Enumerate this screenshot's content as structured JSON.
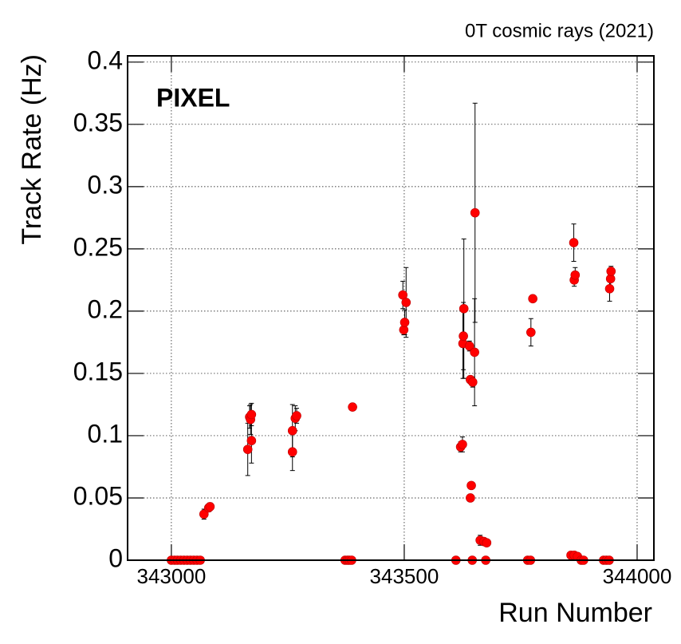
{
  "chart_data": {
    "type": "scatter",
    "title": "0T cosmic rays (2021)",
    "annotation": "PIXEL",
    "x_label": "Run Number",
    "y_label": "Track Rate (Hz)",
    "color": "#ff0000",
    "grid": true,
    "xlim": [
      342906,
      344036
    ],
    "ylim": [
      0,
      0.405
    ],
    "xticks": [
      343000,
      343500,
      344000
    ],
    "yticks": [
      0,
      0.05,
      0.1,
      0.15,
      0.2,
      0.25,
      0.3,
      0.35,
      0.4
    ],
    "x": [
      343000,
      343007,
      343013,
      343020,
      343027,
      343034,
      343041,
      343048,
      343055,
      343062,
      343070,
      343080,
      343083,
      343164,
      343168,
      343170,
      343172,
      343172,
      343260,
      343260,
      343266,
      343269,
      343373,
      343378,
      343382,
      343387,
      343389,
      343497,
      343499,
      343501,
      343504,
      343611,
      343621,
      343625,
      343626,
      343627,
      343628,
      343640,
      343642,
      343644,
      343642,
      343646,
      343647,
      343651,
      343652,
      343663,
      343671,
      343677,
      343675,
      343765,
      343771,
      343772,
      343776,
      343858,
      343865,
      343864,
      343865,
      343867,
      343872,
      343880,
      343885,
      343928,
      343934,
      343940,
      343941,
      343943,
      343944
    ],
    "values": [
      0,
      0,
      0,
      0,
      0,
      0,
      0,
      0,
      0,
      0,
      0.037,
      0.042,
      0.043,
      0.089,
      0.115,
      0.113,
      0.117,
      0.096,
      0.104,
      0.087,
      0.114,
      0.116,
      0,
      0,
      0,
      0,
      0.123,
      0.213,
      0.185,
      0.191,
      0.207,
      0,
      0.091,
      0.093,
      0.174,
      0.18,
      0.202,
      0.172,
      0.145,
      0.06,
      0.05,
      0,
      0.143,
      0.167,
      0.279,
      0.016,
      0.015,
      0.014,
      0,
      0,
      0,
      0.183,
      0.21,
      0.004,
      0.004,
      0.255,
      0.225,
      0.229,
      0.003,
      0,
      0,
      0,
      0,
      0,
      0.218,
      0.226,
      0.232
    ],
    "errors": [
      0,
      0,
      0,
      0,
      0,
      0,
      0,
      0,
      0,
      0,
      0.004,
      0.003,
      0.003,
      0.021,
      0.009,
      0.012,
      0.009,
      0.018,
      0.021,
      0.015,
      0.01,
      0.006,
      0,
      0,
      0,
      0,
      0.002,
      0.011,
      0.004,
      0.01,
      0.028,
      0,
      0.004,
      0.006,
      0.028,
      0.027,
      0.056,
      0.004,
      0.003,
      0.002,
      0.002,
      0,
      0.004,
      0.043,
      0.088,
      0.004,
      0.002,
      0.002,
      0,
      0,
      0,
      0.011,
      0.002,
      0.002,
      0.002,
      0.015,
      0.005,
      0.006,
      0.002,
      0,
      0,
      0,
      0,
      0,
      0.01,
      0.008,
      0.004
    ]
  }
}
